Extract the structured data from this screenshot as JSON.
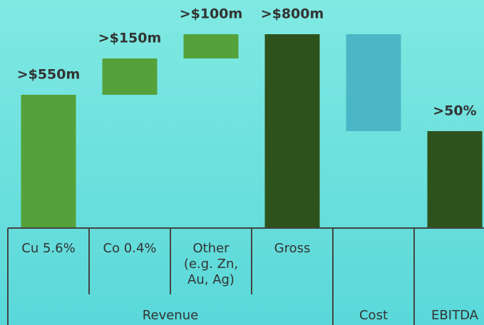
{
  "chart_data": {
    "type": "waterfall",
    "categories": [
      "Cu 5.6%",
      "Co 0.4%",
      "Other (e.g. Zn, Au, Ag)",
      "Gross",
      "",
      ""
    ],
    "values": [
      550,
      150,
      100,
      800,
      -400,
      400
    ],
    "measure": [
      "relative",
      "relative",
      "relative",
      "total",
      "relative",
      "total"
    ],
    "value_labels": [
      ">$550m",
      ">$150m",
      ">$100m",
      ">$800m",
      null,
      null
    ],
    "annotation": ">50%",
    "colors": [
      "#55a13a",
      "#55a13a",
      "#55a13a",
      "#2d521c",
      "#4bb7c6",
      "#2d521c"
    ],
    "groups": [
      "Revenue",
      "Cost",
      "EBITDA"
    ],
    "ylim": [
      0,
      800
    ]
  }
}
